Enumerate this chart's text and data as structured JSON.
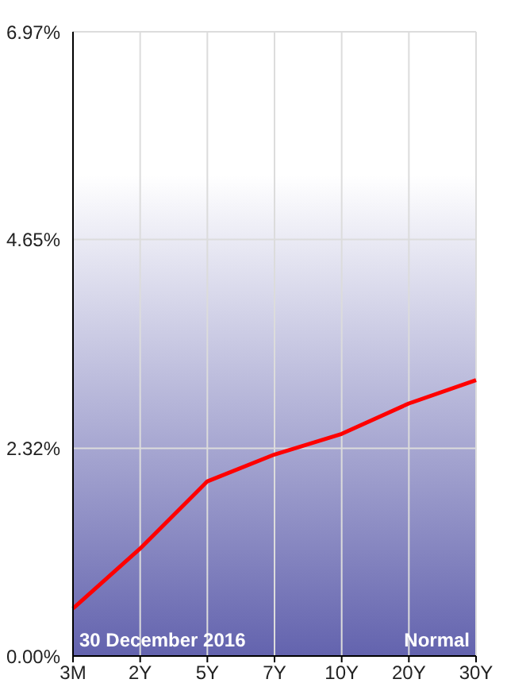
{
  "chart_data": {
    "type": "line",
    "categories": [
      "3M",
      "2Y",
      "5Y",
      "7Y",
      "10Y",
      "20Y",
      "30Y"
    ],
    "series": [
      {
        "color": "#ff0000",
        "values": [
          0.53,
          1.2,
          1.95,
          2.25,
          2.48,
          2.82,
          3.08
        ]
      }
    ],
    "ylim": [
      0,
      6.97
    ],
    "yticks": [
      {
        "value": 0,
        "label": "0.00%"
      },
      {
        "value": 2.32,
        "label": "2.32%"
      },
      {
        "value": 4.65,
        "label": "4.65%"
      },
      {
        "value": 6.97,
        "label": "6.97%"
      }
    ],
    "grid": true,
    "marker": "none",
    "line_style": "solid",
    "annotations": [
      "30 December 2016",
      "Normal"
    ]
  }
}
